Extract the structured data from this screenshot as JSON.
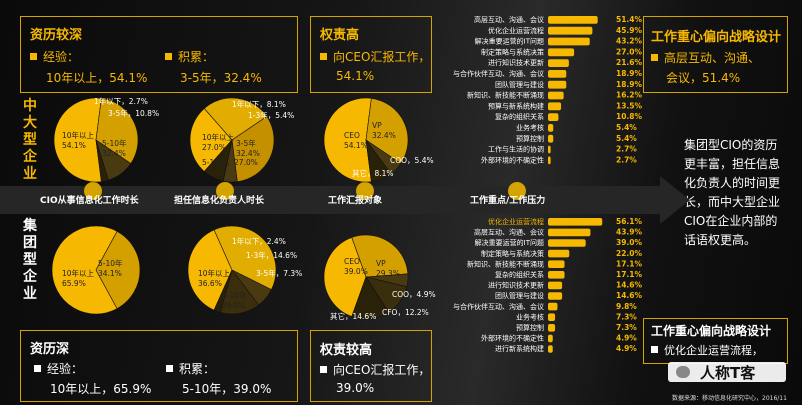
{
  "top_left": {
    "title": "资历较深",
    "item1_label": "经验：",
    "item1_value": "10年以上，54.1%",
    "item2_label": "积累：",
    "item2_value": "3-5年，32.4%"
  },
  "top_mid": {
    "title": "权责高",
    "line1": "向CEO汇报工作，",
    "line2": "54.1%"
  },
  "top_right": {
    "title": "工作重心偏向战略设计",
    "line1": "高层互动、沟通、",
    "line2": "会议，51.4%"
  },
  "bottom_left": {
    "title": "资历深",
    "item1_label": "经验：",
    "item1_value": "10年以上，65.9%",
    "item2_label": "积累：",
    "item2_value": "5-10年，39.0%"
  },
  "bottom_mid": {
    "title": "权责较高",
    "line1": "向CEO汇报工作，",
    "line2": "39.0%"
  },
  "bottom_right": {
    "title": "工作重心偏向战略设计",
    "line1": "优化企业运营流程，"
  },
  "side_labels": {
    "top": "中大型企业",
    "bottom": "集团型企业"
  },
  "summary": "集团型CIO的资历更丰富，担任信息化负责人的时间更长，而中大型企业CIO在企业内部的话语权更高。",
  "arrow_labels": [
    "CIO从事信息化工作时长",
    "担任信息化负责人时长",
    "工作汇报对象",
    "工作重点/工作压力"
  ],
  "watermark": "人称T客",
  "footer": "数据来源：移动信息化研究中心，2016/11",
  "colors": {
    "accent": "#f6b800",
    "dark_slice": "#4a3a12",
    "darker_slice": "#2a2208",
    "bar": "#f6b800"
  },
  "chart_data": [
    {
      "type": "pie",
      "group": "中大型企业",
      "topic": "CIO从事信息化工作时长",
      "slices": [
        {
          "label": "10年以上",
          "value": 54.1
        },
        {
          "label": "5-10年",
          "value": 32.4
        },
        {
          "label": "3-5年",
          "value": 10.8
        },
        {
          "label": "1年以下",
          "value": 2.7
        }
      ]
    },
    {
      "type": "pie",
      "group": "中大型企业",
      "topic": "担任信息化负责人时长",
      "slices": [
        {
          "label": "10年以上",
          "value": 27.0
        },
        {
          "label": "5-10年",
          "value": 27.0
        },
        {
          "label": "3-5年",
          "value": 32.4
        },
        {
          "label": "1-3年",
          "value": 5.4
        },
        {
          "label": "1年以下",
          "value": 8.1
        }
      ]
    },
    {
      "type": "pie",
      "group": "中大型企业",
      "topic": "工作汇报对象",
      "slices": [
        {
          "label": "CEO",
          "value": 54.1
        },
        {
          "label": "VP",
          "value": 32.4
        },
        {
          "label": "COO",
          "value": 5.4
        },
        {
          "label": "其它",
          "value": 8.1
        }
      ]
    },
    {
      "type": "bar",
      "orientation": "horizontal",
      "group": "中大型企业",
      "topic": "工作重点/工作压力",
      "categories": [
        "高层互动、沟通、会议",
        "优化企业运营流程",
        "解决重要运营的IT问题",
        "制定策略与系统决策",
        "进行知识技术更新",
        "与合作伙伴互动、沟通、会议",
        "团队管理与建设",
        "新知识、新技能不断涌现",
        "预算与新系统构建",
        "复杂的组织关系",
        "业务考核",
        "预算控制",
        "工作与生活的协调",
        "外部环境的不确定性"
      ],
      "values": [
        51.4,
        45.9,
        43.2,
        27.0,
        21.6,
        18.9,
        18.9,
        16.2,
        13.5,
        10.8,
        5.4,
        5.4,
        2.7,
        2.7
      ],
      "xlim": [
        0,
        60
      ]
    },
    {
      "type": "pie",
      "group": "集团型企业",
      "topic": "CIO从事信息化工作时长",
      "slices": [
        {
          "label": "10年以上",
          "value": 65.9
        },
        {
          "label": "5-10年",
          "value": 34.1
        }
      ]
    },
    {
      "type": "pie",
      "group": "集团型企业",
      "topic": "担任信息化负责人时长",
      "slices": [
        {
          "label": "10年以上",
          "value": 36.6
        },
        {
          "label": "5-10年",
          "value": 39.0
        },
        {
          "label": "3-5年",
          "value": 7.3
        },
        {
          "label": "1-3年",
          "value": 14.6
        },
        {
          "label": "1年以下",
          "value": 2.4
        }
      ]
    },
    {
      "type": "pie",
      "group": "集团型企业",
      "topic": "工作汇报对象",
      "slices": [
        {
          "label": "CEO",
          "value": 39.0
        },
        {
          "label": "VP",
          "value": 29.3
        },
        {
          "label": "COO",
          "value": 4.9
        },
        {
          "label": "CFO",
          "value": 12.2
        },
        {
          "label": "其它",
          "value": 14.6
        }
      ]
    },
    {
      "type": "bar",
      "orientation": "horizontal",
      "group": "集团型企业",
      "topic": "工作重点/工作压力",
      "categories": [
        "优化企业运营流程",
        "高层互动、沟通、会议",
        "解决重要运营的IT问题",
        "制定策略与系统决策",
        "新知识、新技能不断涌现",
        "复杂的组织关系",
        "进行知识技术更新",
        "团队管理与建设",
        "与合作伙伴互动、沟通、会议",
        "业务考核",
        "预算控制",
        "外部环境的不确定性",
        "进行新系统构建"
      ],
      "values": [
        56.1,
        43.9,
        39.0,
        22.0,
        17.1,
        17.1,
        14.6,
        14.6,
        9.8,
        7.3,
        7.3,
        4.9,
        4.9
      ],
      "xlim": [
        0,
        60
      ]
    }
  ]
}
